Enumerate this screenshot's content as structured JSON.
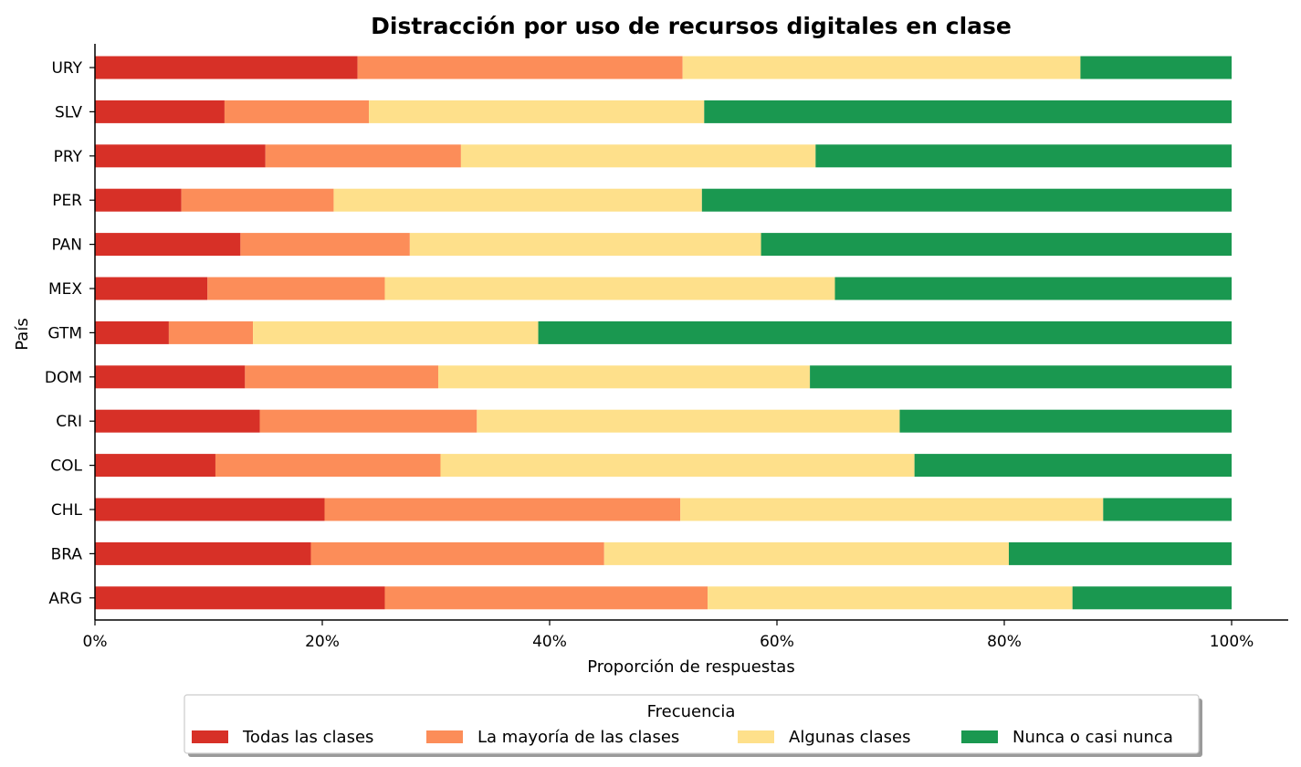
{
  "chart_data": {
    "type": "bar",
    "orientation": "horizontal",
    "stacked": true,
    "title": "Distracción por uso de recursos digitales en clase",
    "xlabel": "Proporción de respuestas",
    "ylabel": "País",
    "xlim": [
      0,
      100
    ],
    "x_ticks": [
      "0%",
      "20%",
      "40%",
      "60%",
      "80%",
      "100%"
    ],
    "categories": [
      "ARG",
      "BRA",
      "CHL",
      "COL",
      "CRI",
      "DOM",
      "GTM",
      "MEX",
      "PAN",
      "PER",
      "PRY",
      "SLV",
      "URY"
    ],
    "series": [
      {
        "name": "Todas las clases",
        "color": "#d73027",
        "values": [
          25.5,
          19.0,
          20.2,
          10.6,
          14.5,
          13.2,
          6.5,
          9.9,
          12.8,
          7.6,
          15.0,
          11.4,
          23.1
        ]
      },
      {
        "name": "La mayoría de las clases",
        "color": "#fc8d59",
        "values": [
          28.4,
          25.8,
          31.3,
          19.8,
          19.1,
          17.0,
          7.4,
          15.6,
          14.9,
          13.4,
          17.2,
          12.7,
          28.6
        ]
      },
      {
        "name": "Algunas clases",
        "color": "#fee08b",
        "values": [
          32.1,
          35.6,
          37.2,
          41.7,
          37.2,
          32.7,
          25.1,
          39.6,
          30.9,
          32.4,
          31.2,
          29.5,
          35.0
        ]
      },
      {
        "name": "Nunca o casi nunca",
        "color": "#1a9850",
        "values": [
          14.0,
          19.6,
          11.3,
          27.9,
          29.2,
          37.1,
          61.0,
          34.9,
          41.4,
          46.6,
          36.6,
          46.4,
          13.3
        ]
      }
    ],
    "legend": {
      "title": "Frecuencia",
      "placement": "bottom-center"
    },
    "grid": false
  }
}
